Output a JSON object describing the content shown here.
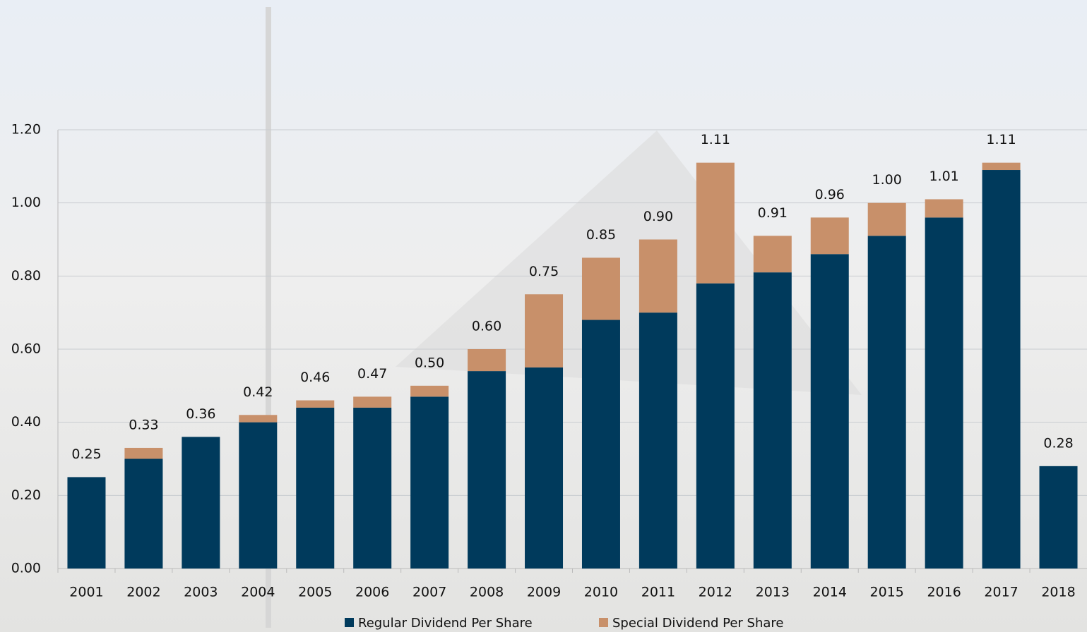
{
  "chart_data": {
    "type": "stacked-bar",
    "categories": [
      "2001",
      "2002",
      "2003",
      "2004",
      "2005",
      "2006",
      "2007",
      "2008",
      "2009",
      "2010",
      "2011",
      "2012",
      "2013",
      "2014",
      "2015",
      "2016",
      "2017",
      "2018"
    ],
    "series": [
      {
        "name": "Regular Dividend Per Share",
        "color": "#003a5c",
        "values": [
          0.25,
          0.3,
          0.36,
          0.4,
          0.44,
          0.44,
          0.47,
          0.54,
          0.55,
          0.68,
          0.7,
          0.78,
          0.81,
          0.86,
          0.91,
          0.96,
          1.09,
          0.28
        ]
      },
      {
        "name": "Special Dividend Per Share",
        "color": "#c8906a",
        "values": [
          0,
          0.03,
          0,
          0.02,
          0.02,
          0.03,
          0.03,
          0.06,
          0.2,
          0.17,
          0.2,
          0.33,
          0.1,
          0.1,
          0.09,
          0.05,
          0.02,
          0
        ]
      }
    ],
    "totals": [
      0.25,
      0.33,
      0.36,
      0.42,
      0.46,
      0.47,
      0.5,
      0.6,
      0.75,
      0.85,
      0.9,
      1.11,
      0.91,
      0.96,
      1,
      1.01,
      1.11,
      0.28
    ],
    "total_labels": [
      "0.25",
      "0.33",
      "0.36",
      "0.42",
      "0.46",
      "0.47",
      "0.50",
      "0.60",
      "0.75",
      "0.85",
      "0.90",
      "1.11",
      "0.91",
      "0.96",
      "1.00",
      "1.01",
      "1.11",
      "0.28"
    ],
    "ylim": [
      0,
      1.2
    ],
    "yticks": [
      {
        "value": 0,
        "label": "0.00"
      },
      {
        "value": 0.2,
        "label": "0.20"
      },
      {
        "value": 0.4,
        "label": "0.40"
      },
      {
        "value": 0.6,
        "label": "0.60"
      },
      {
        "value": 0.8,
        "label": "0.80"
      },
      {
        "value": 1,
        "label": "1.00"
      },
      {
        "value": 1.2,
        "label": "1.20"
      }
    ],
    "grid": true
  }
}
